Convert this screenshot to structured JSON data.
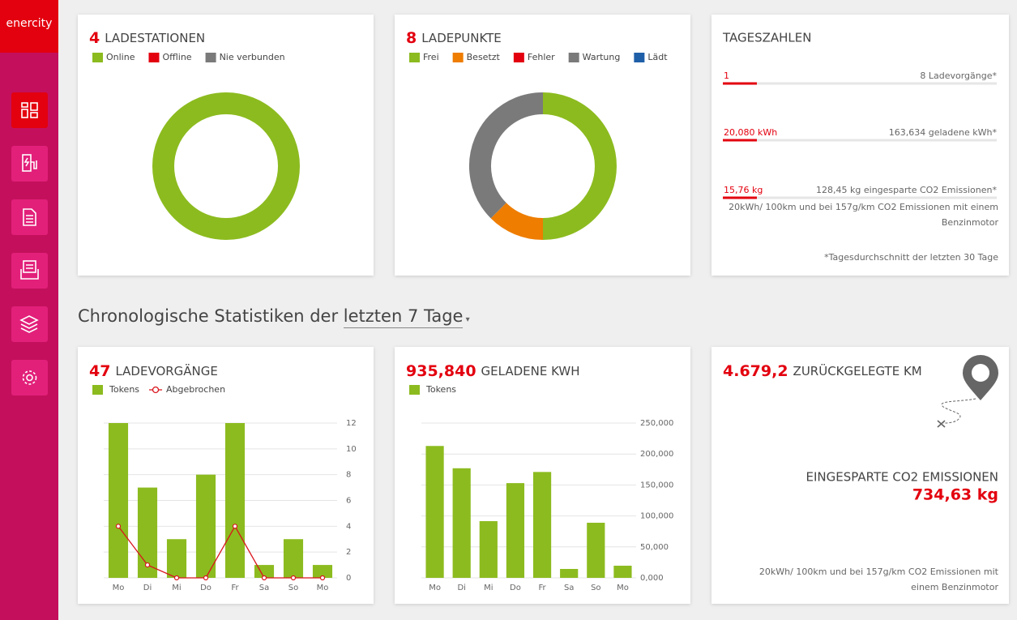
{
  "sidebar": {
    "brand": "enercity"
  },
  "heading": {
    "text": "Chronologische Statistiken der",
    "period": "letzten 7 Tage"
  },
  "stations": {
    "count": 4,
    "title": "LADESTATIONEN",
    "chart_data": {
      "type": "donut",
      "categories": [
        "Online",
        "Offline",
        "Nie verbunden"
      ],
      "values": [
        4,
        0,
        0
      ],
      "colors": [
        "#8cbb1f",
        "#e3000f",
        "#7a7a7a"
      ]
    }
  },
  "points": {
    "count": 8,
    "title": "LADEPUNKTE",
    "chart_data": {
      "type": "donut",
      "categories": [
        "Frei",
        "Besetzt",
        "Fehler",
        "Wartung",
        "Lädt"
      ],
      "values": [
        4,
        1,
        0,
        3,
        0
      ],
      "colors": [
        "#8cbb1f",
        "#ee7d00",
        "#e3000f",
        "#7a7a7a",
        "#1f5fa8"
      ]
    }
  },
  "daily": {
    "title": "TAGESZAHLEN",
    "rows": [
      {
        "value": "1",
        "label": "8 Ladevorgänge*"
      },
      {
        "value": "20,080 kWh",
        "label": "163,634 geladene kWh*"
      },
      {
        "value": "15,76 kg",
        "label": "128,45 kg eingesparte CO2 Emissionen*"
      }
    ],
    "note": "20kWh/ 100km und bei 157g/km CO2 Emissionen mit einem Benzinmotor",
    "footnote": "*Tagesdurchschnitt der letzten 30 Tage"
  },
  "sessions": {
    "count": 47,
    "title": "LADEVORGÄNGE",
    "chart_data": {
      "type": "bar",
      "categories": [
        "Mo",
        "Di",
        "Mi",
        "Do",
        "Fr",
        "Sa",
        "So",
        "Mo"
      ],
      "series": [
        {
          "name": "Tokens",
          "type": "bar",
          "color": "#8cbb1f",
          "values": [
            12,
            7,
            3,
            8,
            12,
            1,
            3,
            1
          ]
        },
        {
          "name": "Abgebrochen",
          "type": "line",
          "color": "#d9141c",
          "values": [
            4,
            1,
            0,
            0,
            4,
            0,
            0,
            0
          ]
        }
      ],
      "ylim": [
        0,
        12
      ],
      "yticks": [
        0,
        2,
        4,
        6,
        8,
        10,
        12
      ],
      "grid": true
    }
  },
  "energy": {
    "count": "935,840",
    "title": "GELADENE KWH",
    "chart_data": {
      "type": "bar",
      "categories": [
        "Mo",
        "Di",
        "Mi",
        "Do",
        "Fr",
        "Sa",
        "So",
        "Mo"
      ],
      "series": [
        {
          "name": "Tokens",
          "type": "bar",
          "color": "#8cbb1f",
          "values": [
            213000,
            177000,
            91600,
            153000,
            171000,
            14400,
            89000,
            19600
          ]
        }
      ],
      "ylim": [
        0,
        250000
      ],
      "yticks": [
        {
          "value": 0,
          "label": "0,000"
        },
        {
          "value": 50000,
          "label": "50,000"
        },
        {
          "value": 100000,
          "label": "100,000"
        },
        {
          "value": 150000,
          "label": "150,000"
        },
        {
          "value": 200000,
          "label": "200,000"
        },
        {
          "value": 250000,
          "label": "250,000"
        }
      ],
      "grid": true
    }
  },
  "distance": {
    "count": "4.679,2",
    "title": "ZURÜCKGELEGTE KM",
    "co2_title": "EINGESPARTE CO2 EMISSIONEN",
    "co2_value": "734,63 kg",
    "note": "20kWh/ 100km und bei 157g/km CO2 Emissionen mit einem Benzinmotor"
  }
}
